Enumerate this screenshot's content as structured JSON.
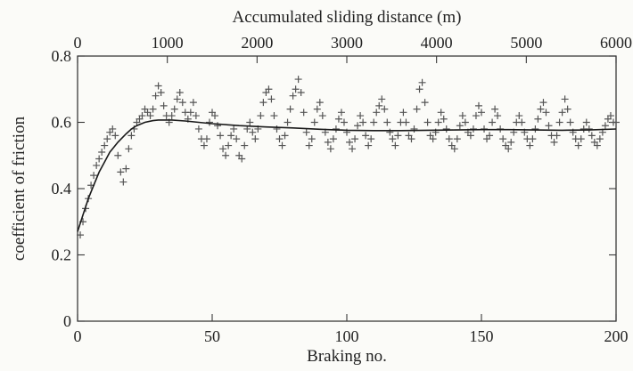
{
  "chart_data": {
    "type": "scatter",
    "title": "",
    "xlabel": "Braking no.",
    "ylabel": "coefficient of friction",
    "x2label": "Accumulated sliding distance (m)",
    "xlim": [
      0,
      200
    ],
    "ylim": [
      0,
      0.8
    ],
    "x2lim": [
      0,
      6000
    ],
    "xticks": [
      "0",
      "50",
      "100",
      "150",
      "200"
    ],
    "yticks": [
      "0",
      "0.2",
      "0.4",
      "0.6",
      "0.8"
    ],
    "x2ticks": [
      "0",
      "1000",
      "2000",
      "3000",
      "4000",
      "5000",
      "6000"
    ],
    "grid": false,
    "legend": "none",
    "marker": "plus",
    "colors": {
      "markers": "#555555",
      "fit": "#1a1a1a",
      "frame": "#3a3a3a"
    },
    "series": [
      {
        "kind": "markers",
        "x": [
          1,
          2,
          3,
          4,
          5,
          6,
          7,
          8,
          9,
          10,
          11,
          12,
          13,
          14,
          15,
          16,
          17,
          18,
          19,
          20,
          21,
          22,
          23,
          24,
          25,
          26,
          27,
          28,
          29,
          30,
          31,
          32,
          33,
          34,
          35,
          36,
          37,
          38,
          39,
          40,
          41,
          42,
          43,
          44,
          45,
          46,
          47,
          48,
          49,
          50,
          51,
          52,
          53,
          54,
          55,
          56,
          57,
          58,
          59,
          60,
          61,
          62,
          63,
          64,
          65,
          66,
          67,
          68,
          69,
          70,
          71,
          72,
          73,
          74,
          75,
          76,
          77,
          78,
          79,
          80,
          81,
          82,
          83,
          84,
          85,
          86,
          87,
          88,
          89,
          90,
          91,
          92,
          93,
          94,
          95,
          96,
          97,
          98,
          99,
          100,
          101,
          102,
          103,
          104,
          105,
          106,
          107,
          108,
          109,
          110,
          111,
          112,
          113,
          114,
          115,
          116,
          117,
          118,
          119,
          120,
          121,
          122,
          123,
          124,
          125,
          126,
          127,
          128,
          129,
          130,
          131,
          132,
          133,
          134,
          135,
          136,
          137,
          138,
          139,
          140,
          141,
          142,
          143,
          144,
          145,
          146,
          147,
          148,
          149,
          150,
          151,
          152,
          153,
          154,
          155,
          156,
          157,
          158,
          159,
          160,
          161,
          162,
          163,
          164,
          165,
          166,
          167,
          168,
          169,
          170,
          171,
          172,
          173,
          174,
          175,
          176,
          177,
          178,
          179,
          180,
          181,
          182,
          183,
          184,
          185,
          186,
          187,
          188,
          189,
          190,
          191,
          192,
          193,
          194,
          195,
          196,
          197,
          198,
          199,
          200
        ],
        "y": [
          0.26,
          0.3,
          0.34,
          0.37,
          0.41,
          0.44,
          0.47,
          0.49,
          0.51,
          0.53,
          0.55,
          0.57,
          0.58,
          0.56,
          0.5,
          0.45,
          0.42,
          0.46,
          0.52,
          0.56,
          0.58,
          0.6,
          0.61,
          0.62,
          0.64,
          0.63,
          0.62,
          0.64,
          0.68,
          0.71,
          0.69,
          0.65,
          0.62,
          0.6,
          0.62,
          0.64,
          0.67,
          0.69,
          0.66,
          0.63,
          0.61,
          0.63,
          0.66,
          0.62,
          0.58,
          0.55,
          0.53,
          0.55,
          0.6,
          0.63,
          0.62,
          0.59,
          0.56,
          0.52,
          0.5,
          0.53,
          0.56,
          0.58,
          0.55,
          0.5,
          0.49,
          0.53,
          0.58,
          0.6,
          0.57,
          0.55,
          0.58,
          0.62,
          0.66,
          0.69,
          0.7,
          0.67,
          0.62,
          0.58,
          0.55,
          0.53,
          0.56,
          0.6,
          0.64,
          0.68,
          0.7,
          0.73,
          0.69,
          0.63,
          0.57,
          0.53,
          0.55,
          0.6,
          0.64,
          0.66,
          0.62,
          0.57,
          0.54,
          0.52,
          0.55,
          0.58,
          0.61,
          0.63,
          0.6,
          0.57,
          0.54,
          0.52,
          0.55,
          0.59,
          0.62,
          0.6,
          0.56,
          0.53,
          0.55,
          0.6,
          0.63,
          0.65,
          0.67,
          0.64,
          0.6,
          0.57,
          0.55,
          0.53,
          0.56,
          0.6,
          0.63,
          0.6,
          0.56,
          0.55,
          0.58,
          0.64,
          0.7,
          0.72,
          0.66,
          0.6,
          0.56,
          0.55,
          0.57,
          0.6,
          0.63,
          0.61,
          0.58,
          0.55,
          0.53,
          0.52,
          0.55,
          0.59,
          0.62,
          0.6,
          0.57,
          0.56,
          0.58,
          0.62,
          0.65,
          0.63,
          0.58,
          0.55,
          0.56,
          0.6,
          0.64,
          0.62,
          0.58,
          0.55,
          0.53,
          0.52,
          0.54,
          0.57,
          0.6,
          0.62,
          0.6,
          0.57,
          0.55,
          0.53,
          0.55,
          0.58,
          0.61,
          0.64,
          0.66,
          0.63,
          0.59,
          0.56,
          0.54,
          0.56,
          0.6,
          0.63,
          0.67,
          0.64,
          0.6,
          0.57,
          0.55,
          0.53,
          0.55,
          0.58,
          0.6,
          0.58,
          0.56,
          0.54,
          0.53,
          0.55,
          0.57,
          0.59,
          0.61,
          0.62,
          0.6,
          0.6
        ]
      },
      {
        "kind": "fit",
        "x": [
          0,
          2,
          4,
          6,
          8,
          10,
          12,
          15,
          18,
          20,
          22,
          25,
          28,
          30,
          35,
          40,
          45,
          50,
          60,
          70,
          80,
          90,
          100,
          110,
          120,
          130,
          140,
          150,
          160,
          170,
          180,
          190,
          200
        ],
        "y": [
          0.27,
          0.32,
          0.37,
          0.41,
          0.45,
          0.48,
          0.51,
          0.54,
          0.565,
          0.58,
          0.59,
          0.6,
          0.605,
          0.607,
          0.607,
          0.604,
          0.6,
          0.596,
          0.59,
          0.586,
          0.583,
          0.579,
          0.576,
          0.575,
          0.575,
          0.576,
          0.577,
          0.578,
          0.578,
          0.577,
          0.576,
          0.577,
          0.58
        ]
      }
    ]
  }
}
